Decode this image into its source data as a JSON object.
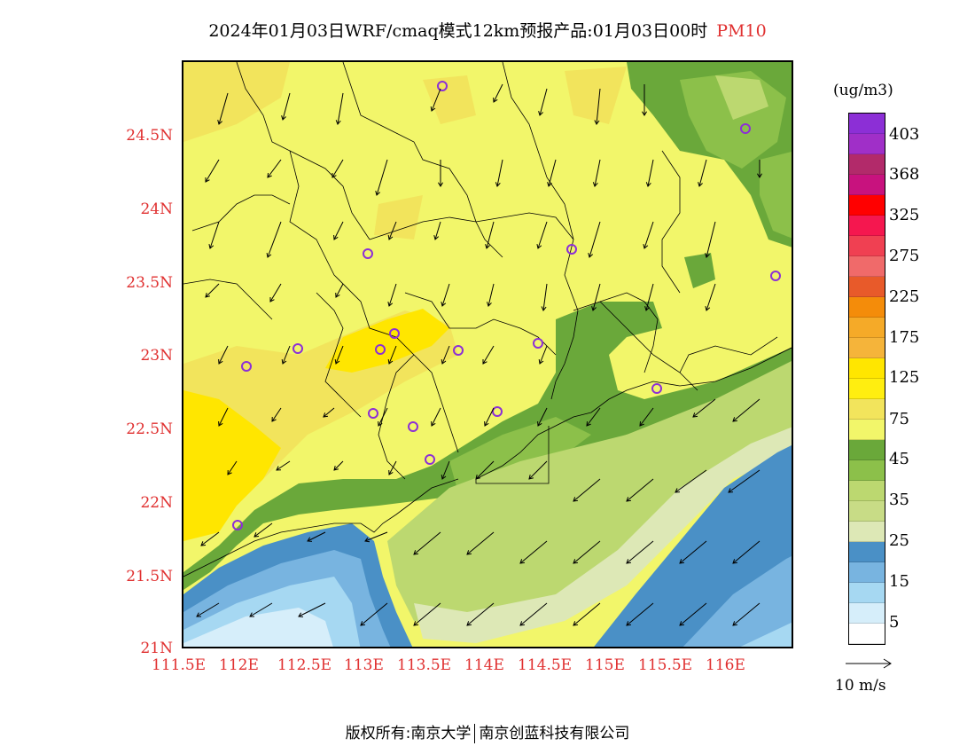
{
  "title": {
    "text": "2024年01月03日WRF/cmaq模式12km预报产品:01月03日00时",
    "pollutant": "PM10"
  },
  "axes": {
    "lat_labels": [
      "24.5N",
      "24N",
      "23.5N",
      "23N",
      "22.5N",
      "22N",
      "21.5N",
      "21N"
    ],
    "lon_labels": [
      "111.5E",
      "112E",
      "112.5E",
      "113E",
      "113.5E",
      "114E",
      "114.5E",
      "115E",
      "115.5E",
      "116E"
    ]
  },
  "colorbar": {
    "units": "(ug/m3)",
    "colors": [
      "#8c2fd6",
      "#a02fc8",
      "#b22a6a",
      "#c8127e",
      "#ff0000",
      "#f5174f",
      "#f04052",
      "#f06a6a",
      "#e85a2a",
      "#f48c0a",
      "#f5aa28",
      "#f5b43a",
      "#ffe600",
      "#ffee10",
      "#f2e45c",
      "#f2f66a",
      "#6aa83a",
      "#8cc04a",
      "#bcd870",
      "#c8dc86",
      "#dde8b6",
      "#4a90c6",
      "#78b4e0",
      "#a6d8f2",
      "#d6eefa",
      "#ffffff"
    ],
    "labels": [
      "403",
      "368",
      "325",
      "275",
      "225",
      "175",
      "125",
      "75",
      "45",
      "35",
      "25",
      "15",
      "5"
    ]
  },
  "wind_reference": {
    "label": "10 m/s"
  },
  "copyright": {
    "left": "版权所有:南京大学",
    "right": "南京创蓝科技有限公司"
  },
  "map": {
    "station_markers": 19,
    "wind_direction": "north-northeast (arrows pointing south-southwest)"
  }
}
